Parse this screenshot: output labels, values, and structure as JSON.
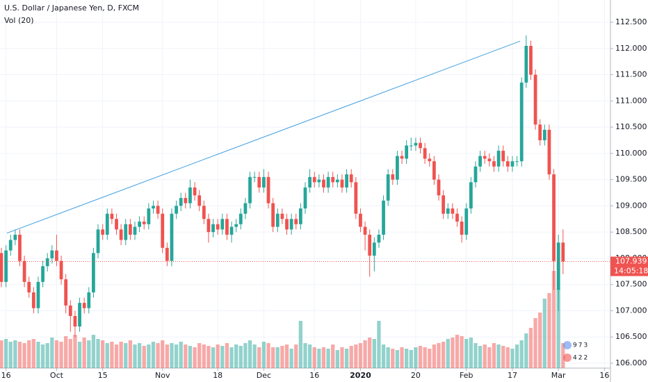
{
  "chart_data": {
    "type": "candlestick",
    "title": "U.S. Dollar / Japanese Yen, D, FXCM",
    "subtitle": "Vol (20)",
    "open": [
      108.1,
      107.55,
      108.15,
      108.35,
      108.45,
      107.95,
      107.55,
      107.35,
      107.05,
      107.55,
      107.85,
      108.0,
      108.15,
      107.95,
      107.6,
      107.1,
      106.9,
      106.7,
      107.15,
      107.05,
      107.35,
      108.1,
      108.55,
      108.45,
      108.85,
      108.75,
      108.55,
      108.35,
      108.65,
      108.45,
      108.6,
      108.7,
      108.65,
      108.95,
      109.0,
      108.85,
      108.2,
      107.95,
      108.85,
      109.0,
      109.15,
      109.05,
      109.35,
      109.2,
      109.0,
      108.75,
      108.5,
      108.65,
      108.55,
      108.75,
      108.45,
      108.6,
      108.65,
      108.85,
      109.05,
      109.55,
      109.55,
      109.35,
      109.55,
      109.05,
      108.6,
      108.85,
      108.75,
      108.55,
      108.75,
      108.65,
      108.95,
      109.35,
      109.55,
      109.45,
      109.5,
      109.35,
      109.55,
      109.45,
      109.5,
      109.35,
      109.6,
      109.45,
      108.85,
      108.6,
      108.45,
      108.05,
      108.3,
      108.45,
      109.1,
      109.6,
      109.5,
      109.95,
      109.9,
      110.15,
      110.15,
      110.2,
      110.1,
      109.9,
      109.85,
      109.5,
      109.2,
      108.85,
      108.95,
      108.85,
      108.7,
      108.45,
      108.95,
      109.45,
      109.75,
      109.95,
      109.9,
      109.85,
      109.75,
      110.05,
      109.85,
      109.75,
      109.85,
      109.85,
      111.35,
      112.05,
      111.5,
      110.55,
      110.25,
      110.45,
      109.6,
      107.4,
      108.3
    ],
    "high": [
      108.2,
      108.25,
      108.45,
      108.55,
      108.55,
      108.05,
      107.65,
      107.45,
      107.65,
      107.95,
      108.1,
      108.25,
      108.45,
      108.05,
      107.7,
      107.2,
      107.0,
      107.25,
      107.25,
      107.45,
      108.2,
      108.65,
      108.65,
      108.95,
      108.95,
      108.85,
      108.65,
      108.75,
      108.75,
      108.7,
      108.8,
      108.8,
      109.05,
      109.1,
      109.1,
      108.95,
      108.3,
      108.95,
      109.1,
      109.25,
      109.25,
      109.5,
      109.45,
      109.3,
      109.1,
      108.85,
      108.75,
      108.75,
      108.85,
      108.85,
      108.7,
      108.75,
      108.95,
      109.15,
      109.65,
      109.65,
      109.65,
      109.7,
      109.65,
      109.15,
      108.95,
      108.95,
      108.85,
      108.85,
      108.85,
      109.05,
      109.45,
      109.7,
      109.65,
      109.6,
      109.6,
      109.65,
      109.65,
      109.6,
      109.6,
      109.7,
      109.7,
      109.55,
      108.95,
      108.7,
      108.55,
      108.4,
      108.55,
      109.2,
      109.7,
      109.7,
      110.05,
      110.05,
      110.25,
      110.3,
      110.3,
      110.3,
      110.2,
      110.0,
      109.95,
      109.6,
      109.3,
      109.05,
      109.05,
      108.95,
      108.8,
      109.05,
      109.55,
      109.85,
      110.05,
      110.05,
      110.0,
      109.95,
      110.15,
      110.15,
      109.95,
      109.95,
      109.95,
      111.45,
      112.25,
      112.15,
      111.6,
      110.65,
      110.55,
      110.55,
      109.7,
      108.45,
      108.55
    ],
    "low": [
      107.45,
      107.45,
      108.05,
      108.25,
      107.85,
      107.45,
      107.25,
      106.95,
      106.95,
      107.45,
      107.75,
      107.9,
      107.85,
      107.5,
      106.95,
      106.6,
      106.5,
      106.6,
      106.95,
      106.95,
      107.25,
      108.0,
      108.35,
      108.35,
      108.65,
      108.45,
      108.25,
      108.25,
      108.35,
      108.35,
      108.5,
      108.55,
      108.55,
      108.85,
      108.75,
      108.1,
      107.85,
      107.85,
      108.75,
      108.9,
      108.95,
      108.95,
      109.1,
      108.9,
      108.65,
      108.3,
      108.4,
      108.45,
      108.45,
      108.35,
      108.3,
      108.5,
      108.55,
      108.75,
      108.95,
      109.45,
      109.25,
      109.25,
      108.95,
      108.5,
      108.5,
      108.65,
      108.45,
      108.45,
      108.55,
      108.55,
      108.85,
      109.25,
      109.35,
      109.35,
      109.25,
      109.25,
      109.35,
      109.35,
      109.25,
      109.25,
      109.35,
      108.75,
      108.5,
      108.15,
      107.65,
      107.75,
      108.2,
      108.35,
      109.0,
      109.4,
      109.4,
      109.8,
      109.8,
      110.05,
      110.05,
      110.0,
      109.8,
      109.75,
      109.4,
      109.1,
      108.75,
      108.75,
      108.75,
      108.6,
      108.3,
      108.35,
      108.85,
      109.35,
      109.65,
      109.8,
      109.75,
      109.65,
      109.65,
      109.75,
      109.65,
      109.65,
      109.75,
      109.75,
      111.25,
      111.4,
      110.45,
      110.15,
      110.15,
      109.5,
      107.4,
      107.0,
      107.7
    ],
    "close": [
      107.55,
      108.15,
      108.35,
      108.45,
      107.95,
      107.55,
      107.35,
      107.05,
      107.55,
      107.85,
      108.0,
      108.15,
      107.95,
      107.6,
      107.1,
      106.9,
      106.7,
      107.15,
      107.05,
      107.35,
      108.1,
      108.55,
      108.45,
      108.85,
      108.75,
      108.55,
      108.35,
      108.65,
      108.45,
      108.6,
      108.7,
      108.65,
      108.95,
      109.0,
      108.85,
      108.2,
      107.95,
      108.85,
      109.0,
      109.15,
      109.05,
      109.35,
      109.2,
      109.0,
      108.75,
      108.5,
      108.65,
      108.55,
      108.75,
      108.45,
      108.6,
      108.65,
      108.85,
      109.05,
      109.55,
      109.55,
      109.35,
      109.55,
      109.05,
      108.6,
      108.85,
      108.75,
      108.55,
      108.75,
      108.65,
      108.95,
      109.35,
      109.55,
      109.45,
      109.5,
      109.35,
      109.55,
      109.45,
      109.5,
      109.35,
      109.6,
      109.45,
      108.85,
      108.6,
      108.45,
      108.05,
      108.3,
      108.45,
      109.1,
      109.6,
      109.5,
      109.95,
      109.9,
      110.15,
      110.15,
      110.2,
      110.1,
      109.9,
      109.85,
      109.5,
      109.2,
      108.85,
      108.95,
      108.85,
      108.7,
      108.45,
      108.95,
      109.45,
      109.75,
      109.95,
      109.9,
      109.85,
      109.75,
      110.05,
      109.85,
      109.75,
      109.85,
      109.85,
      111.35,
      112.05,
      111.5,
      110.55,
      110.25,
      110.45,
      109.6,
      107.95,
      108.3,
      107.939
    ],
    "volume": [
      40,
      42,
      38,
      40,
      38,
      36,
      40,
      42,
      38,
      34,
      36,
      44,
      40,
      38,
      46,
      42,
      48,
      38,
      44,
      40,
      48,
      42,
      40,
      36,
      38,
      34,
      38,
      36,
      40,
      34,
      36,
      32,
      34,
      38,
      36,
      40,
      34,
      36,
      34,
      38,
      34,
      32,
      30,
      36,
      34,
      32,
      30,
      34,
      32,
      36,
      30,
      34,
      32,
      36,
      40,
      34,
      30,
      38,
      36,
      30,
      30,
      32,
      34,
      28,
      34,
      68,
      36,
      34,
      30,
      28,
      30,
      28,
      34,
      26,
      30,
      28,
      32,
      34,
      36,
      40,
      44,
      42,
      68,
      34,
      30,
      28,
      26,
      30,
      28,
      26,
      30,
      32,
      30,
      28,
      34,
      36,
      38,
      42,
      44,
      48,
      46,
      42,
      44,
      36,
      32,
      34,
      30,
      36,
      34,
      32,
      30,
      28,
      34,
      40,
      50,
      58,
      72,
      80,
      100,
      108,
      140,
      115,
      36
    ],
    "up_color": "#26a69a",
    "down_color": "#ef5350",
    "xlim": [
      -0.3,
      132.3
    ],
    "xticks": [
      {
        "value": 1,
        "label": "16"
      },
      {
        "value": 12,
        "label": "Oct"
      },
      {
        "value": 22,
        "label": "15"
      },
      {
        "value": 35,
        "label": "Nov"
      },
      {
        "value": 47,
        "label": "18"
      },
      {
        "value": 57,
        "label": "Dec"
      },
      {
        "value": 68,
        "label": "16"
      },
      {
        "value": 78,
        "label": "2020",
        "bold": true
      },
      {
        "value": 90,
        "label": "20"
      },
      {
        "value": 101,
        "label": "Feb"
      },
      {
        "value": 111,
        "label": "17"
      },
      {
        "value": 121,
        "label": "Mar"
      },
      {
        "value": 131,
        "label": "16"
      }
    ],
    "ylim": [
      105.907,
      112.924
    ],
    "yticks": [
      {
        "value": 106,
        "label": "106.000"
      },
      {
        "value": 106.5,
        "label": "106.500"
      },
      {
        "value": 107,
        "label": "107.000"
      },
      {
        "value": 107.5,
        "label": "107.500"
      },
      {
        "value": 108,
        "label": "108.000"
      },
      {
        "value": 108.5,
        "label": "108.500"
      },
      {
        "value": 109,
        "label": "109.000"
      },
      {
        "value": 109.5,
        "label": "109.500"
      },
      {
        "value": 110,
        "label": "110.000"
      },
      {
        "value": 110.5,
        "label": "110.500"
      },
      {
        "value": 111,
        "label": "111.000"
      },
      {
        "value": 111.5,
        "label": "111.500"
      },
      {
        "value": 112,
        "label": "112.000"
      },
      {
        "value": 112.5,
        "label": "112.500"
      }
    ],
    "grid": true,
    "trendline": {
      "color": "#3d9fe0",
      "x": [
        1.2,
        112.7
      ],
      "y": [
        108.48,
        112.14
      ]
    },
    "last_price": {
      "value": 107.939,
      "label": "107.939"
    },
    "countdown": "14:05:18",
    "badges": [
      "973",
      "422"
    ]
  }
}
